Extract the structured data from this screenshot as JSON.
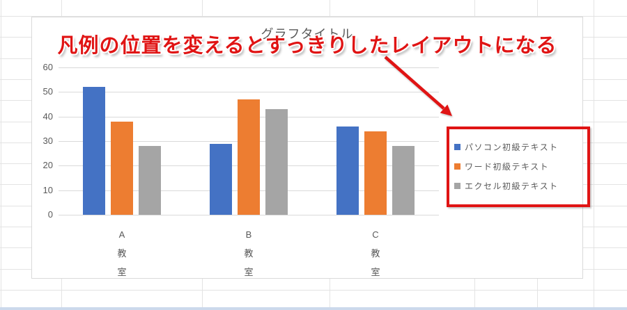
{
  "annotation": {
    "text": "凡例の位置を変えるとすっきりしたレイアウトになる",
    "accent_color": "#e01414"
  },
  "chart_data": {
    "type": "bar",
    "title": "グラフタイトル",
    "categories": [
      "A教室",
      "B教室",
      "C教室"
    ],
    "series": [
      {
        "name": "パソコン初級テキスト",
        "color": "#4472c4",
        "values": [
          52,
          29,
          36
        ]
      },
      {
        "name": "ワード初級テキスト",
        "color": "#ed7d31",
        "values": [
          38,
          47,
          34
        ]
      },
      {
        "name": "エクセル初級テキスト",
        "color": "#a5a5a5",
        "values": [
          28,
          43,
          28
        ]
      }
    ],
    "ylim": [
      0,
      60
    ],
    "yticks": [
      0,
      10,
      20,
      30,
      40,
      50,
      60
    ],
    "grid": true,
    "legend_position": "right-inside",
    "text_color": "#595959",
    "gridline_color": "#d9d9d9"
  }
}
